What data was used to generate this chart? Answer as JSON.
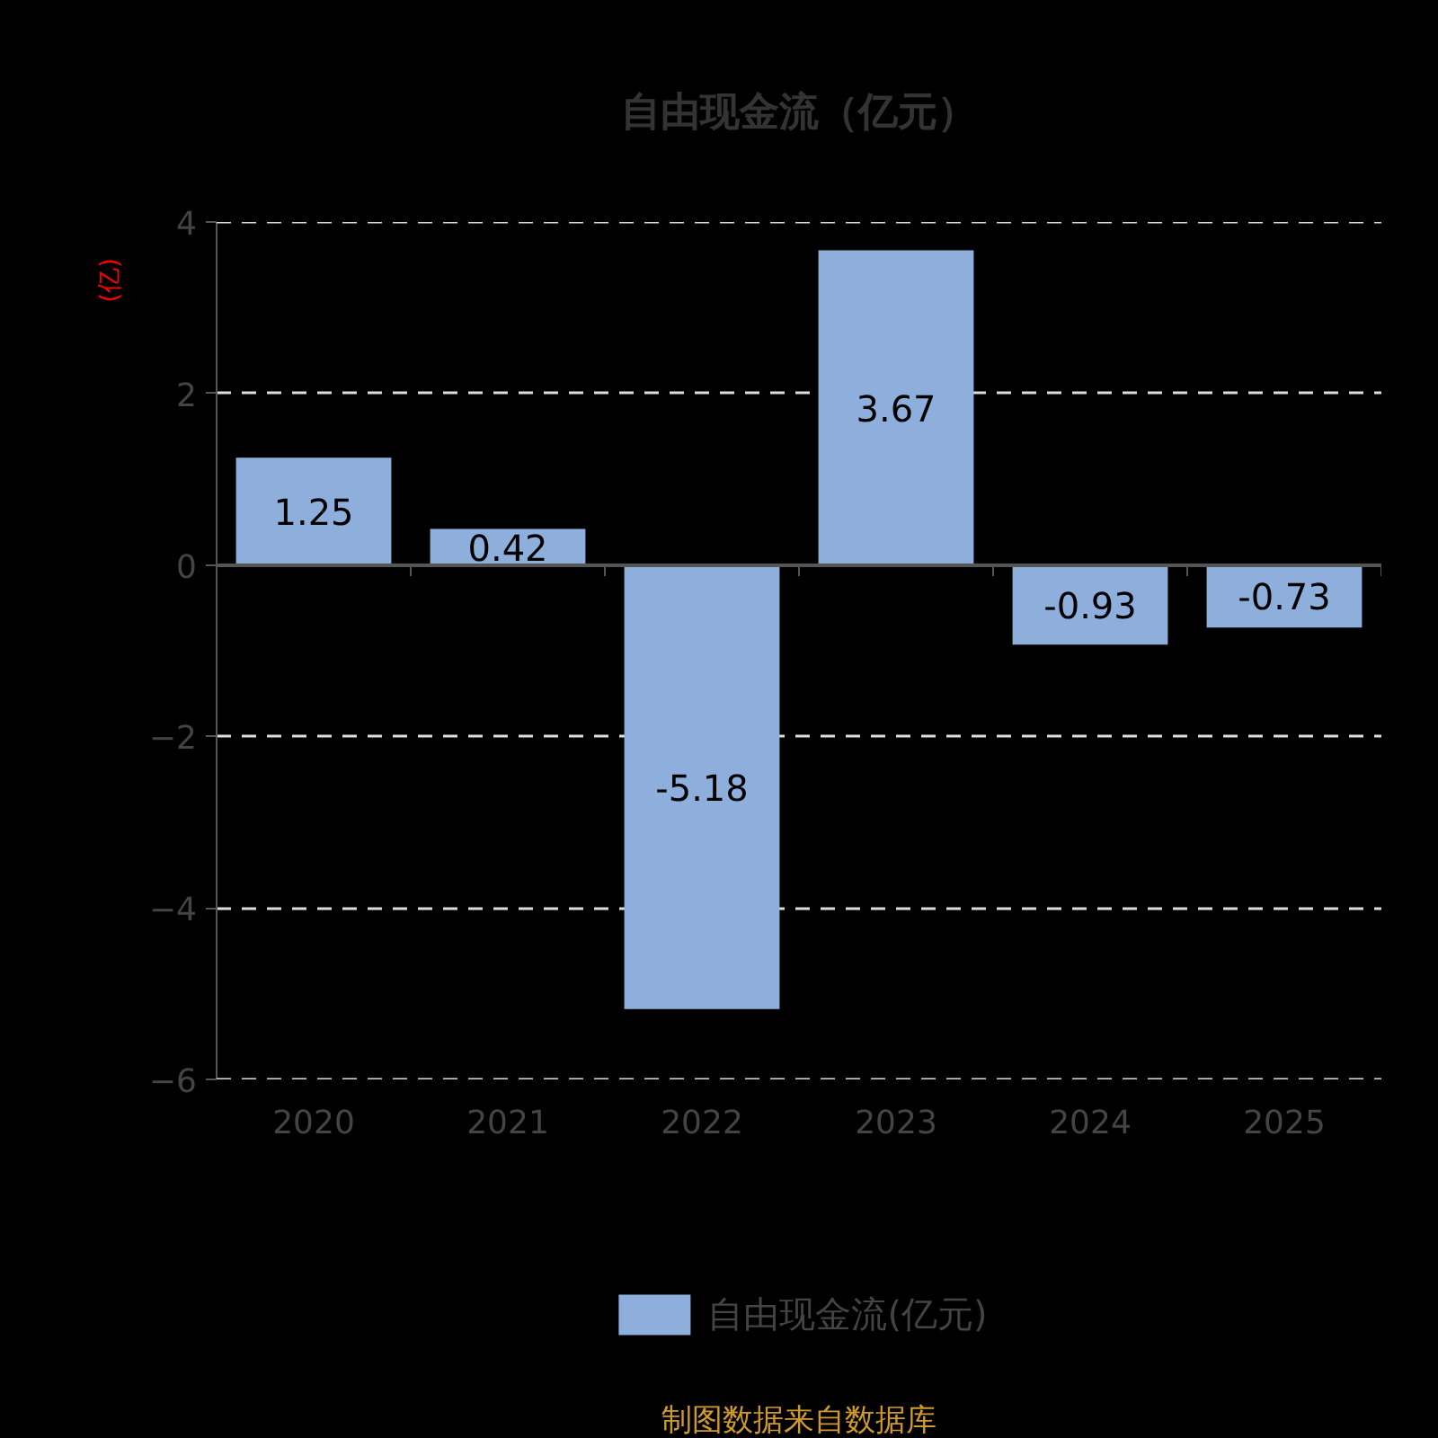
{
  "chart_data": {
    "type": "bar",
    "title": "自由现金流（亿元）",
    "ylabel": "(亿)",
    "categories": [
      "2020",
      "2021",
      "2022",
      "2023",
      "2024",
      "2025"
    ],
    "series": [
      {
        "name": "自由现金流(亿元)",
        "color": "#8eaedc",
        "values": [
          1.25,
          0.42,
          -5.18,
          3.67,
          -0.93,
          -0.73
        ]
      }
    ],
    "ylim": [
      -6,
      4
    ],
    "yticks": [
      -6,
      -4,
      -2,
      0,
      2,
      4
    ],
    "grid": "y",
    "legend": "bottom",
    "data_labels": true,
    "annotations": [
      "制图数据来自数据库"
    ]
  }
}
